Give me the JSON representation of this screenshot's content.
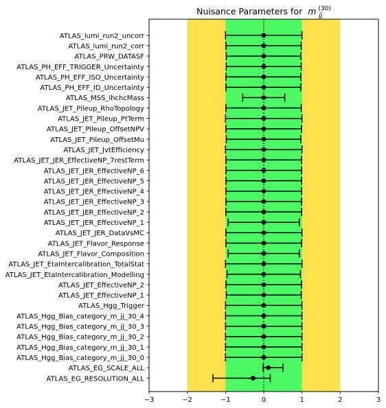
{
  "chart_data": {
    "type": "scatter",
    "title": "Nuisance Parameters for",
    "title_math": {
      "base": "m",
      "sub": "jj",
      "sup": "(30)"
    },
    "xlim": [
      -3,
      3
    ],
    "xticks": [
      -3,
      -2,
      -1,
      0,
      1,
      2,
      3
    ],
    "xtick_labels": [
      "−3",
      "−2",
      "−1",
      "0",
      "1",
      "2",
      "3"
    ],
    "bands": [
      {
        "name": "2 sigma",
        "range": [
          -2,
          2
        ],
        "color": "#ffe14d"
      },
      {
        "name": "1 sigma",
        "range": [
          -1,
          1
        ],
        "color": "#4dfa66"
      }
    ],
    "reference_line": {
      "x": 0,
      "style": "dotted"
    },
    "parameters": [
      {
        "name": "ATLAS_lumi_run2_uncorr",
        "value": 0.0,
        "err_lo": -1.0,
        "err_hi": 1.0
      },
      {
        "name": "ATLAS_lumi_run2_corr",
        "value": 0.0,
        "err_lo": -0.99,
        "err_hi": 0.98
      },
      {
        "name": "ATLAS_PRW_DATASF",
        "value": 0.0,
        "err_lo": -0.98,
        "err_hi": 0.97
      },
      {
        "name": "ATLAS_PH_EFF_TRIGGER_Uncertainty",
        "value": 0.0,
        "err_lo": -0.98,
        "err_hi": 0.98
      },
      {
        "name": "ATLAS_PH_EFF_ISO_Uncertainty",
        "value": 0.0,
        "err_lo": -0.99,
        "err_hi": 0.97
      },
      {
        "name": "ATLAS_PH_EFF_ID_Uncertainty",
        "value": 0.0,
        "err_lo": -0.99,
        "err_hi": 0.97
      },
      {
        "name": "ATLAS_MSS_lhchcMass",
        "value": 0.0,
        "err_lo": -0.55,
        "err_hi": 0.55
      },
      {
        "name": "ATLAS_JET_Pileup_RhoTopology",
        "value": 0.0,
        "err_lo": -0.99,
        "err_hi": 0.98
      },
      {
        "name": "ATLAS_JET_Pileup_PtTerm",
        "value": 0.0,
        "err_lo": -1.0,
        "err_hi": 1.0
      },
      {
        "name": "ATLAS_JET_Pileup_OffsetNPV",
        "value": 0.0,
        "err_lo": -0.99,
        "err_hi": 0.99
      },
      {
        "name": "ATLAS_JET_Pileup_OffsetMu",
        "value": 0.0,
        "err_lo": -0.98,
        "err_hi": 0.97
      },
      {
        "name": "ATLAS_JET_JvtEfficiency",
        "value": 0.0,
        "err_lo": -1.0,
        "err_hi": 1.0
      },
      {
        "name": "ATLAS_JET_JER_EffectiveNP_7restTerm",
        "value": 0.0,
        "err_lo": -0.99,
        "err_hi": 0.99
      },
      {
        "name": "ATLAS_JET_JER_EffectiveNP_6",
        "value": 0.0,
        "err_lo": -0.99,
        "err_hi": 0.99
      },
      {
        "name": "ATLAS_JET_JER_EffectiveNP_5",
        "value": 0.0,
        "err_lo": -0.99,
        "err_hi": 0.99
      },
      {
        "name": "ATLAS_JET_JER_EffectiveNP_4",
        "value": 0.0,
        "err_lo": -0.99,
        "err_hi": 0.99
      },
      {
        "name": "ATLAS_JET_JER_EffectiveNP_3",
        "value": 0.0,
        "err_lo": -0.99,
        "err_hi": 0.99
      },
      {
        "name": "ATLAS_JET_JER_EffectiveNP_2",
        "value": 0.0,
        "err_lo": -0.99,
        "err_hi": 0.99
      },
      {
        "name": "ATLAS_JET_JER_EffectiveNP_1",
        "value": 0.0,
        "err_lo": -0.93,
        "err_hi": 0.93
      },
      {
        "name": "ATLAS_JET_JER_DataVsMC",
        "value": 0.0,
        "err_lo": -0.99,
        "err_hi": 1.0
      },
      {
        "name": "ATLAS_JET_Flavor_Response",
        "value": 0.0,
        "err_lo": -0.99,
        "err_hi": 0.99
      },
      {
        "name": "ATLAS_JET_Flavor_Composition",
        "value": 0.0,
        "err_lo": -0.93,
        "err_hi": 0.93
      },
      {
        "name": "ATLAS_JET_EtaIntercalibration_TotalStat",
        "value": 0.0,
        "err_lo": -1.0,
        "err_hi": 1.0
      },
      {
        "name": "ATLAS_JET_EtaIntercalibration_Modelling",
        "value": 0.0,
        "err_lo": -0.96,
        "err_hi": 0.96
      },
      {
        "name": "ATLAS_JET_EffectiveNP_2",
        "value": 0.0,
        "err_lo": -0.99,
        "err_hi": 0.99
      },
      {
        "name": "ATLAS_JET_EffectiveNP_1",
        "value": 0.0,
        "err_lo": -0.98,
        "err_hi": 0.98
      },
      {
        "name": "ATLAS_Hgg_Trigger",
        "value": 0.0,
        "err_lo": -1.0,
        "err_hi": 1.0
      },
      {
        "name": "ATLAS_Hgg_Bias_category_m_jj_30_4",
        "value": 0.0,
        "err_lo": -1.0,
        "err_hi": 1.0
      },
      {
        "name": "ATLAS_Hgg_Bias_category_m_jj_30_3",
        "value": 0.0,
        "err_lo": -1.0,
        "err_hi": 1.0
      },
      {
        "name": "ATLAS_Hgg_Bias_category_m_jj_30_2",
        "value": 0.0,
        "err_lo": -1.0,
        "err_hi": 1.0
      },
      {
        "name": "ATLAS_Hgg_Bias_category_m_jj_30_1",
        "value": 0.0,
        "err_lo": -1.0,
        "err_hi": 1.0
      },
      {
        "name": "ATLAS_Hgg_Bias_category_m_jj_30_0",
        "value": 0.0,
        "err_lo": -1.0,
        "err_hi": 1.0
      },
      {
        "name": "ATLAS_EG_SCALE_ALL",
        "value": 0.12,
        "err_lo": -0.14,
        "err_hi": 0.38
      },
      {
        "name": "ATLAS_EG_RESOLUTION_ALL",
        "value": -0.28,
        "err_lo": -1.05,
        "err_hi": 0.45
      }
    ]
  }
}
